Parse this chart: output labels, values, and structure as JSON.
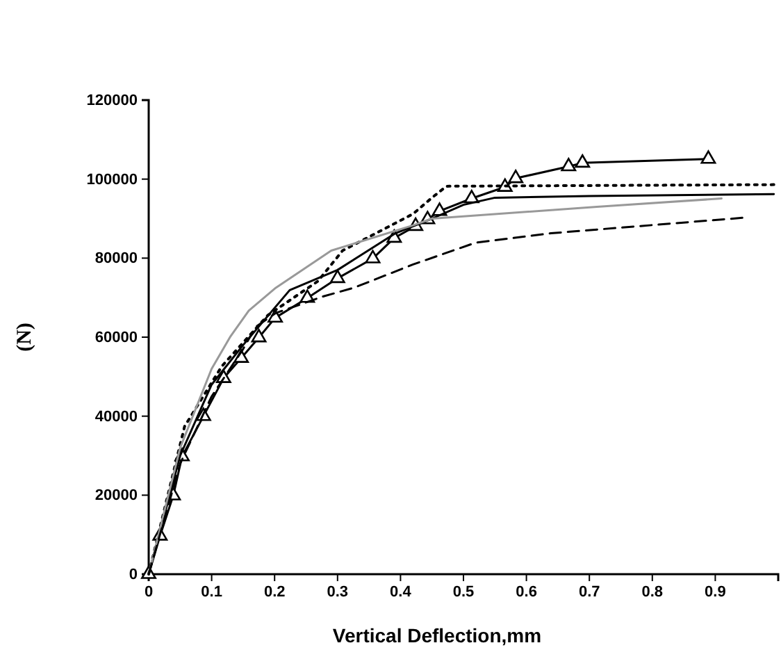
{
  "chart_data": {
    "type": "line",
    "xlabel": "Vertical Deflection,mm",
    "ylabel": "(N)",
    "xlim": [
      0,
      1
    ],
    "xticks": [
      0,
      0.1,
      0.2,
      0.3,
      0.4,
      0.5,
      0.6,
      0.7,
      0.8,
      0.9
    ],
    "ylim": [
      0,
      120000
    ],
    "yticks": [
      0,
      20000,
      40000,
      60000,
      80000,
      100000,
      120000
    ],
    "grid": false,
    "legend": false,
    "series": [
      {
        "color": "#000000",
        "marker": "triangle",
        "line_style": "solid",
        "x": [
          0,
          0.018,
          0.039,
          0.053,
          0.087,
          0.119,
          0.147,
          0.175,
          0.201,
          0.252,
          0.3,
          0.356,
          0.39,
          0.424,
          0.443,
          0.462,
          0.513,
          0.566,
          0.583,
          0.667,
          0.689,
          0.889
        ],
        "values": [
          0,
          9700,
          19900,
          29800,
          40000,
          49600,
          54700,
          59900,
          64900,
          69900,
          74900,
          79900,
          85100,
          88100,
          89800,
          91900,
          95100,
          98000,
          100200,
          103200,
          104100,
          105100
        ]
      },
      {
        "color": "#000000",
        "marker": "none",
        "line_style": "dotted",
        "x": [
          0,
          0.057,
          0.116,
          0.189,
          0.269,
          0.308,
          0.42,
          0.45,
          0.473,
          0.993
        ],
        "values": [
          0,
          37400,
          52600,
          65500,
          74200,
          81900,
          91200,
          95300,
          98200,
          98600
        ]
      },
      {
        "color": "#000000",
        "marker": "none",
        "line_style": "solid",
        "x": [
          0,
          0.05,
          0.1,
          0.15,
          0.224,
          0.3,
          0.392,
          0.45,
          0.5,
          0.55,
          0.7,
          0.993
        ],
        "values": [
          0,
          30000,
          48000,
          58000,
          71900,
          77000,
          86300,
          90000,
          93500,
          95300,
          95700,
          96200
        ]
      },
      {
        "color": "#999999",
        "marker": "none",
        "line_style": "solid",
        "x": [
          0,
          0.05,
          0.1,
          0.13,
          0.159,
          0.202,
          0.29,
          0.42,
          0.45,
          0.712,
          0.91
        ],
        "values": [
          0,
          32000,
          52000,
          60200,
          66700,
          72500,
          81900,
          88300,
          90000,
          93000,
          95100
        ]
      },
      {
        "color": "#000000",
        "marker": "none",
        "line_style": "dashed",
        "x": [
          0,
          0.05,
          0.1,
          0.15,
          0.17,
          0.202,
          0.275,
          0.326,
          0.42,
          0.519,
          0.639,
          0.943
        ],
        "values": [
          0,
          28000,
          45000,
          57000,
          62600,
          66100,
          70200,
          72500,
          78400,
          83900,
          86300,
          90200
        ]
      }
    ]
  }
}
